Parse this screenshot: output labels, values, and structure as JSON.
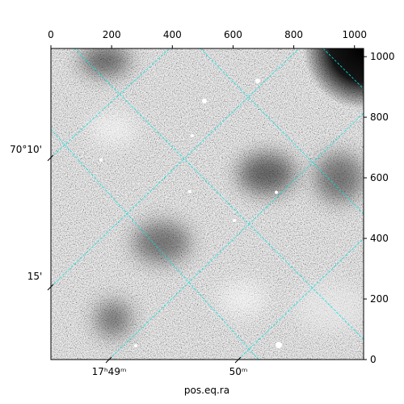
{
  "chart_data": {
    "type": "image",
    "xlabel": "pos.eq.ra",
    "xlim": [
      0,
      1030
    ],
    "xticks": [
      0,
      200,
      400,
      600,
      800,
      1000
    ],
    "ylim": [
      0,
      1027
    ],
    "yticks": [
      0,
      200,
      400,
      600,
      800,
      1000
    ],
    "dec_labels": [
      "70°10'",
      "15'"
    ],
    "ra_labels": [
      "17ʰ49ᵐ",
      "50ᵐ"
    ],
    "grid_color": "#00e5e5"
  }
}
